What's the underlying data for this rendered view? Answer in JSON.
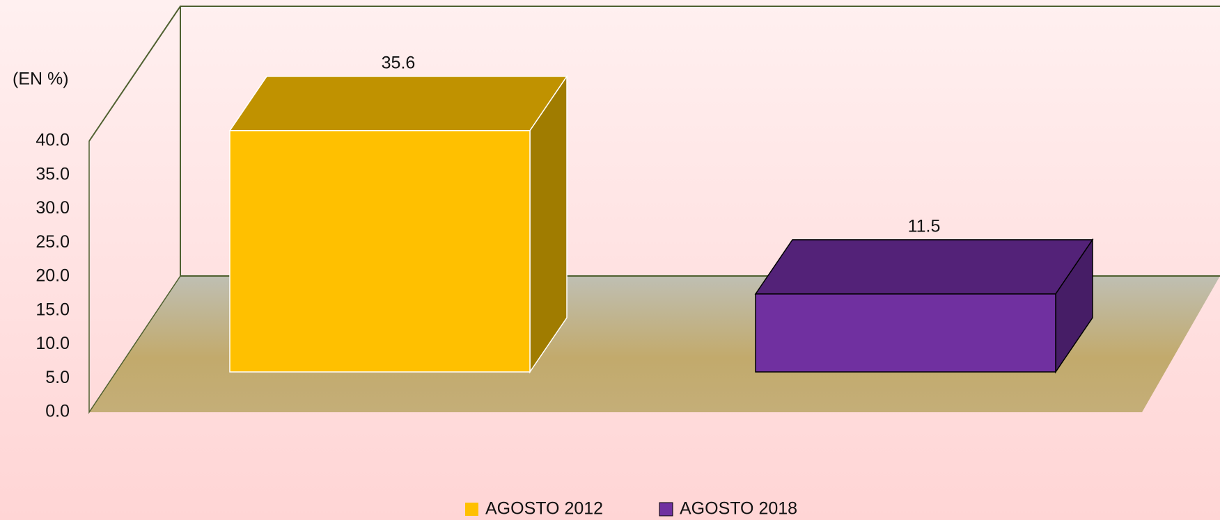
{
  "chart_data": {
    "type": "bar3d",
    "y_label": "(EN %)",
    "categories": [
      null
    ],
    "series": [
      {
        "name": "AGOSTO 2012",
        "color": "#ffc000",
        "top_color": "#c09200",
        "side_color": "#a07c00",
        "edge_color": "#ffffff",
        "values": [
          35.6
        ]
      },
      {
        "name": "AGOSTO 2018",
        "color": "#7030a0",
        "top_color": "#532278",
        "side_color": "#461d66",
        "edge_color": "#000000",
        "values": [
          11.5
        ]
      }
    ],
    "ylim": [
      0,
      40
    ],
    "yticks": [
      {
        "value": 0,
        "label": "0.0"
      },
      {
        "value": 5,
        "label": "5.0"
      },
      {
        "value": 10,
        "label": "10.0"
      },
      {
        "value": 15,
        "label": "15.0"
      },
      {
        "value": 20,
        "label": "20.0"
      },
      {
        "value": 25,
        "label": "25.0"
      },
      {
        "value": 30,
        "label": "30.0"
      },
      {
        "value": 35,
        "label": "35.0"
      },
      {
        "value": 40,
        "label": "40.0"
      }
    ],
    "legend": "bottom",
    "grid": false
  }
}
